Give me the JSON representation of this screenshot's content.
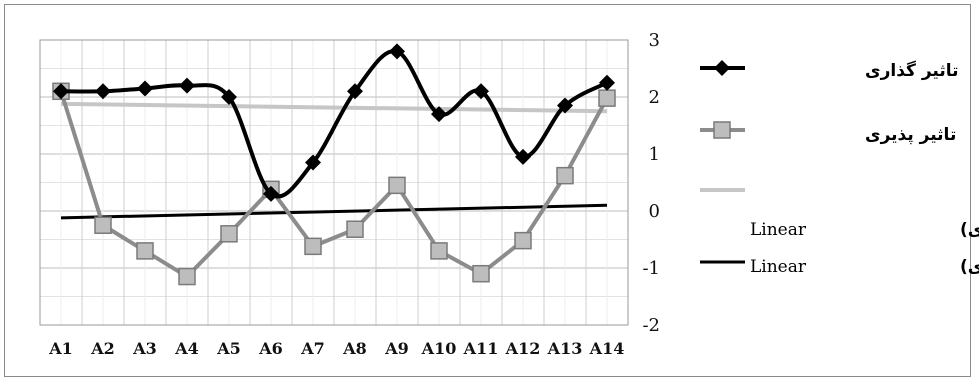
{
  "chart_data": {
    "type": "line",
    "categories": [
      "A1",
      "A2",
      "A3",
      "A4",
      "A5",
      "A6",
      "A7",
      "A8",
      "A9",
      "A10",
      "A11",
      "A12",
      "A13",
      "A14"
    ],
    "series": [
      {
        "name": "تاثیر گذاری",
        "values": [
          2.1,
          2.1,
          2.15,
          2.2,
          2.0,
          0.3,
          0.85,
          2.1,
          2.8,
          1.7,
          2.1,
          0.95,
          1.85,
          2.25
        ],
        "color": "#000000",
        "marker": "diamond",
        "smooth": true
      },
      {
        "name": "تاثیر پذیری",
        "values": [
          2.1,
          -0.25,
          -0.7,
          -1.15,
          -0.4,
          0.38,
          -0.62,
          -0.32,
          0.45,
          -0.7,
          -1.1,
          -0.52,
          0.62,
          1.98
        ],
        "color": "#8c8c8c",
        "marker": "square",
        "smooth": false
      }
    ],
    "trendlines": [
      {
        "label_prefix": "Linear",
        "label_series": "(تاثیر گذاری)",
        "start": 1.88,
        "end": 1.75,
        "color": "#c6c6c6"
      },
      {
        "label_prefix": "Linear",
        "label_series": "(تاثیر پذیری)",
        "start": -0.12,
        "end": 0.1,
        "color": "#000000"
      }
    ],
    "ylim": [
      -2,
      3
    ],
    "yticks": [
      "3",
      "2",
      "1",
      "0",
      "-1",
      "-2"
    ],
    "grid": true,
    "legend_position": "right"
  }
}
